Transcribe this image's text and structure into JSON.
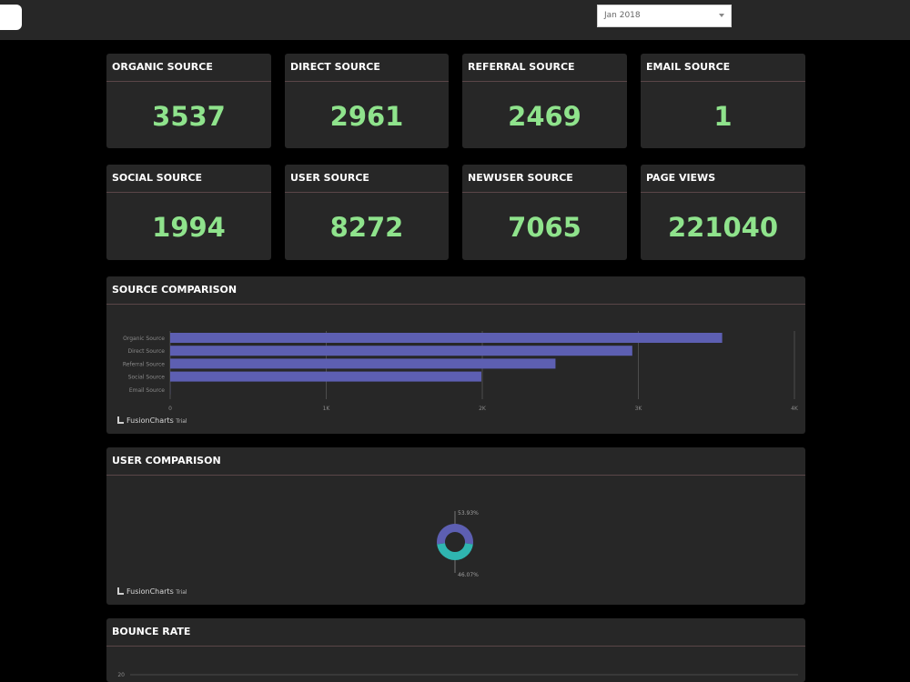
{
  "header": {
    "month_select": "Jan 2018"
  },
  "kpis": [
    {
      "label": "ORGANIC SOURCE",
      "value": "3537"
    },
    {
      "label": "DIRECT SOURCE",
      "value": "2961"
    },
    {
      "label": "REFERRAL SOURCE",
      "value": "2469"
    },
    {
      "label": "EMAIL SOURCE",
      "value": "1"
    },
    {
      "label": "SOCIAL SOURCE",
      "value": "1994"
    },
    {
      "label": "USER SOURCE",
      "value": "8272"
    },
    {
      "label": "NEWUSER SOURCE",
      "value": "7065"
    },
    {
      "label": "PAGE VIEWS",
      "value": "221040"
    }
  ],
  "panels": {
    "source_comparison": "SOURCE COMPARISON",
    "user_comparison": "USER COMPARISON",
    "bounce_rate": "BOUNCE RATE"
  },
  "watermark": {
    "brand": "FusionCharts",
    "trial": "Trial"
  },
  "colors": {
    "kpi_value": "#8fe38c",
    "bar": "#5d5fb2",
    "donut_primary": "#5d5fb2",
    "donut_secondary": "#2fb5b0"
  },
  "chart_data": [
    {
      "type": "bar",
      "orientation": "horizontal",
      "title": "SOURCE COMPARISON",
      "categories": [
        "Organic Source",
        "Direct Source",
        "Referral Source",
        "Social Source",
        "Email Source"
      ],
      "values": [
        3537,
        2961,
        2469,
        1994,
        1
      ],
      "xlim": [
        0,
        4000
      ],
      "x_ticks": [
        "0",
        "1K",
        "2K",
        "3K",
        "4K"
      ],
      "grid": true
    },
    {
      "type": "pie",
      "style": "doughnut",
      "title": "USER COMPARISON",
      "slices": [
        {
          "label": "53.93%",
          "value": 53.93,
          "color": "#5d5fb2"
        },
        {
          "label": "46.07%",
          "value": 46.07,
          "color": "#2fb5b0"
        }
      ]
    },
    {
      "type": "line",
      "title": "BOUNCE RATE",
      "y_ticks": [
        "20"
      ]
    }
  ]
}
